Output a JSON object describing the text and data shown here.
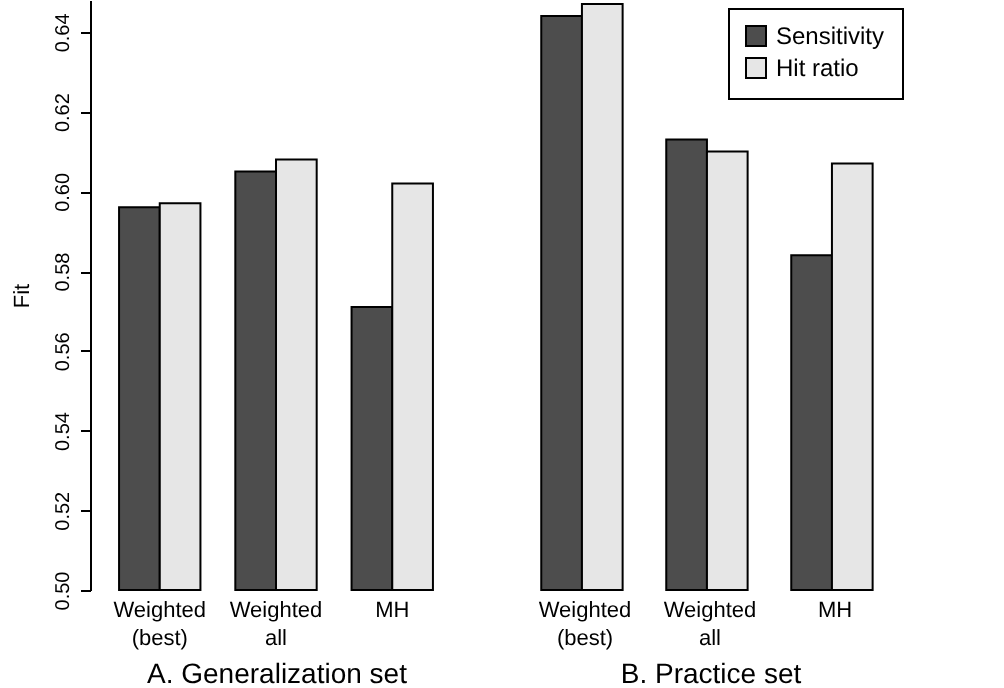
{
  "chart_data": [
    {
      "type": "bar",
      "xlabel": "A. Generalization set",
      "ylabel": "Fit",
      "categories": [
        "Weighted\n(best)",
        "Weighted\nall",
        "MH"
      ],
      "series": [
        {
          "color": "#4d4d4d",
          "values": [
            0.596,
            0.605,
            0.571
          ]
        },
        {
          "color": "#e6e6e6",
          "values": [
            0.597,
            0.608,
            0.602
          ]
        }
      ],
      "ylim": [
        0.5,
        0.648
      ],
      "yticks": [
        {
          "value": 0.5,
          "label": "0.50"
        },
        {
          "value": 0.52,
          "label": "0.52"
        },
        {
          "value": 0.54,
          "label": "0.54"
        },
        {
          "value": 0.56,
          "label": "0.56"
        },
        {
          "value": 0.58,
          "label": "0.58"
        },
        {
          "value": 0.6,
          "label": "0.60"
        },
        {
          "value": 0.62,
          "label": "0.62"
        },
        {
          "value": 0.64,
          "label": "0.64"
        }
      ],
      "grid": false
    },
    {
      "type": "bar",
      "xlabel": "B. Practice set",
      "categories": [
        "Weighted\n(best)",
        "Weighted\nall",
        "MH"
      ],
      "series": [
        {
          "name": "Sensitivity",
          "color": "#4d4d4d",
          "values": [
            0.644,
            0.613,
            0.584
          ]
        },
        {
          "name": "Hit ratio",
          "color": "#e6e6e6",
          "values": [
            0.647,
            0.61,
            0.607
          ]
        }
      ],
      "ylim": [
        0.5,
        0.648
      ],
      "tick_labels": "x",
      "grid": false,
      "legend": "top right"
    }
  ]
}
